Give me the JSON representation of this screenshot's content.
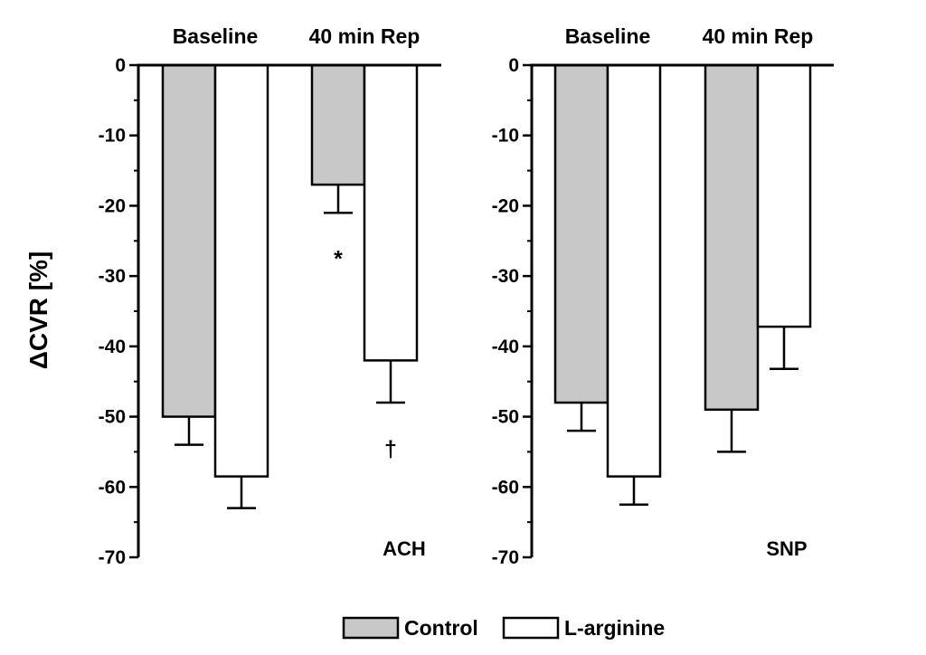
{
  "chart_data": {
    "type": "bar",
    "ylabel": "ΔCVR [%]",
    "ylim": [
      -70,
      0
    ],
    "yticks": [
      0,
      -10,
      -20,
      -30,
      -40,
      -50,
      -60,
      -70
    ],
    "categories": [
      "Baseline",
      "40 min Rep"
    ],
    "series": [
      {
        "name": "Control",
        "color": "#c8c8c8"
      },
      {
        "name": "L-arginine",
        "color": "#ffffff"
      }
    ],
    "panels": [
      {
        "label": "ACH",
        "values": {
          "Control": [
            -50,
            -17
          ],
          "L-arginine": [
            -58.5,
            -42
          ]
        },
        "errors": {
          "Control": [
            4,
            4
          ],
          "L-arginine": [
            4.5,
            6
          ]
        },
        "annotations": [
          {
            "text": "*",
            "category": 1,
            "series": "Control",
            "y": -27.5
          },
          {
            "text": "†",
            "category": 1,
            "series": "L-arginine",
            "y": -54.5
          }
        ]
      },
      {
        "label": "SNP",
        "values": {
          "Control": [
            -48,
            -49
          ],
          "L-arginine": [
            -58.5,
            -37.2
          ]
        },
        "errors": {
          "Control": [
            4,
            6
          ],
          "L-arginine": [
            4,
            6
          ]
        },
        "annotations": []
      }
    ]
  }
}
